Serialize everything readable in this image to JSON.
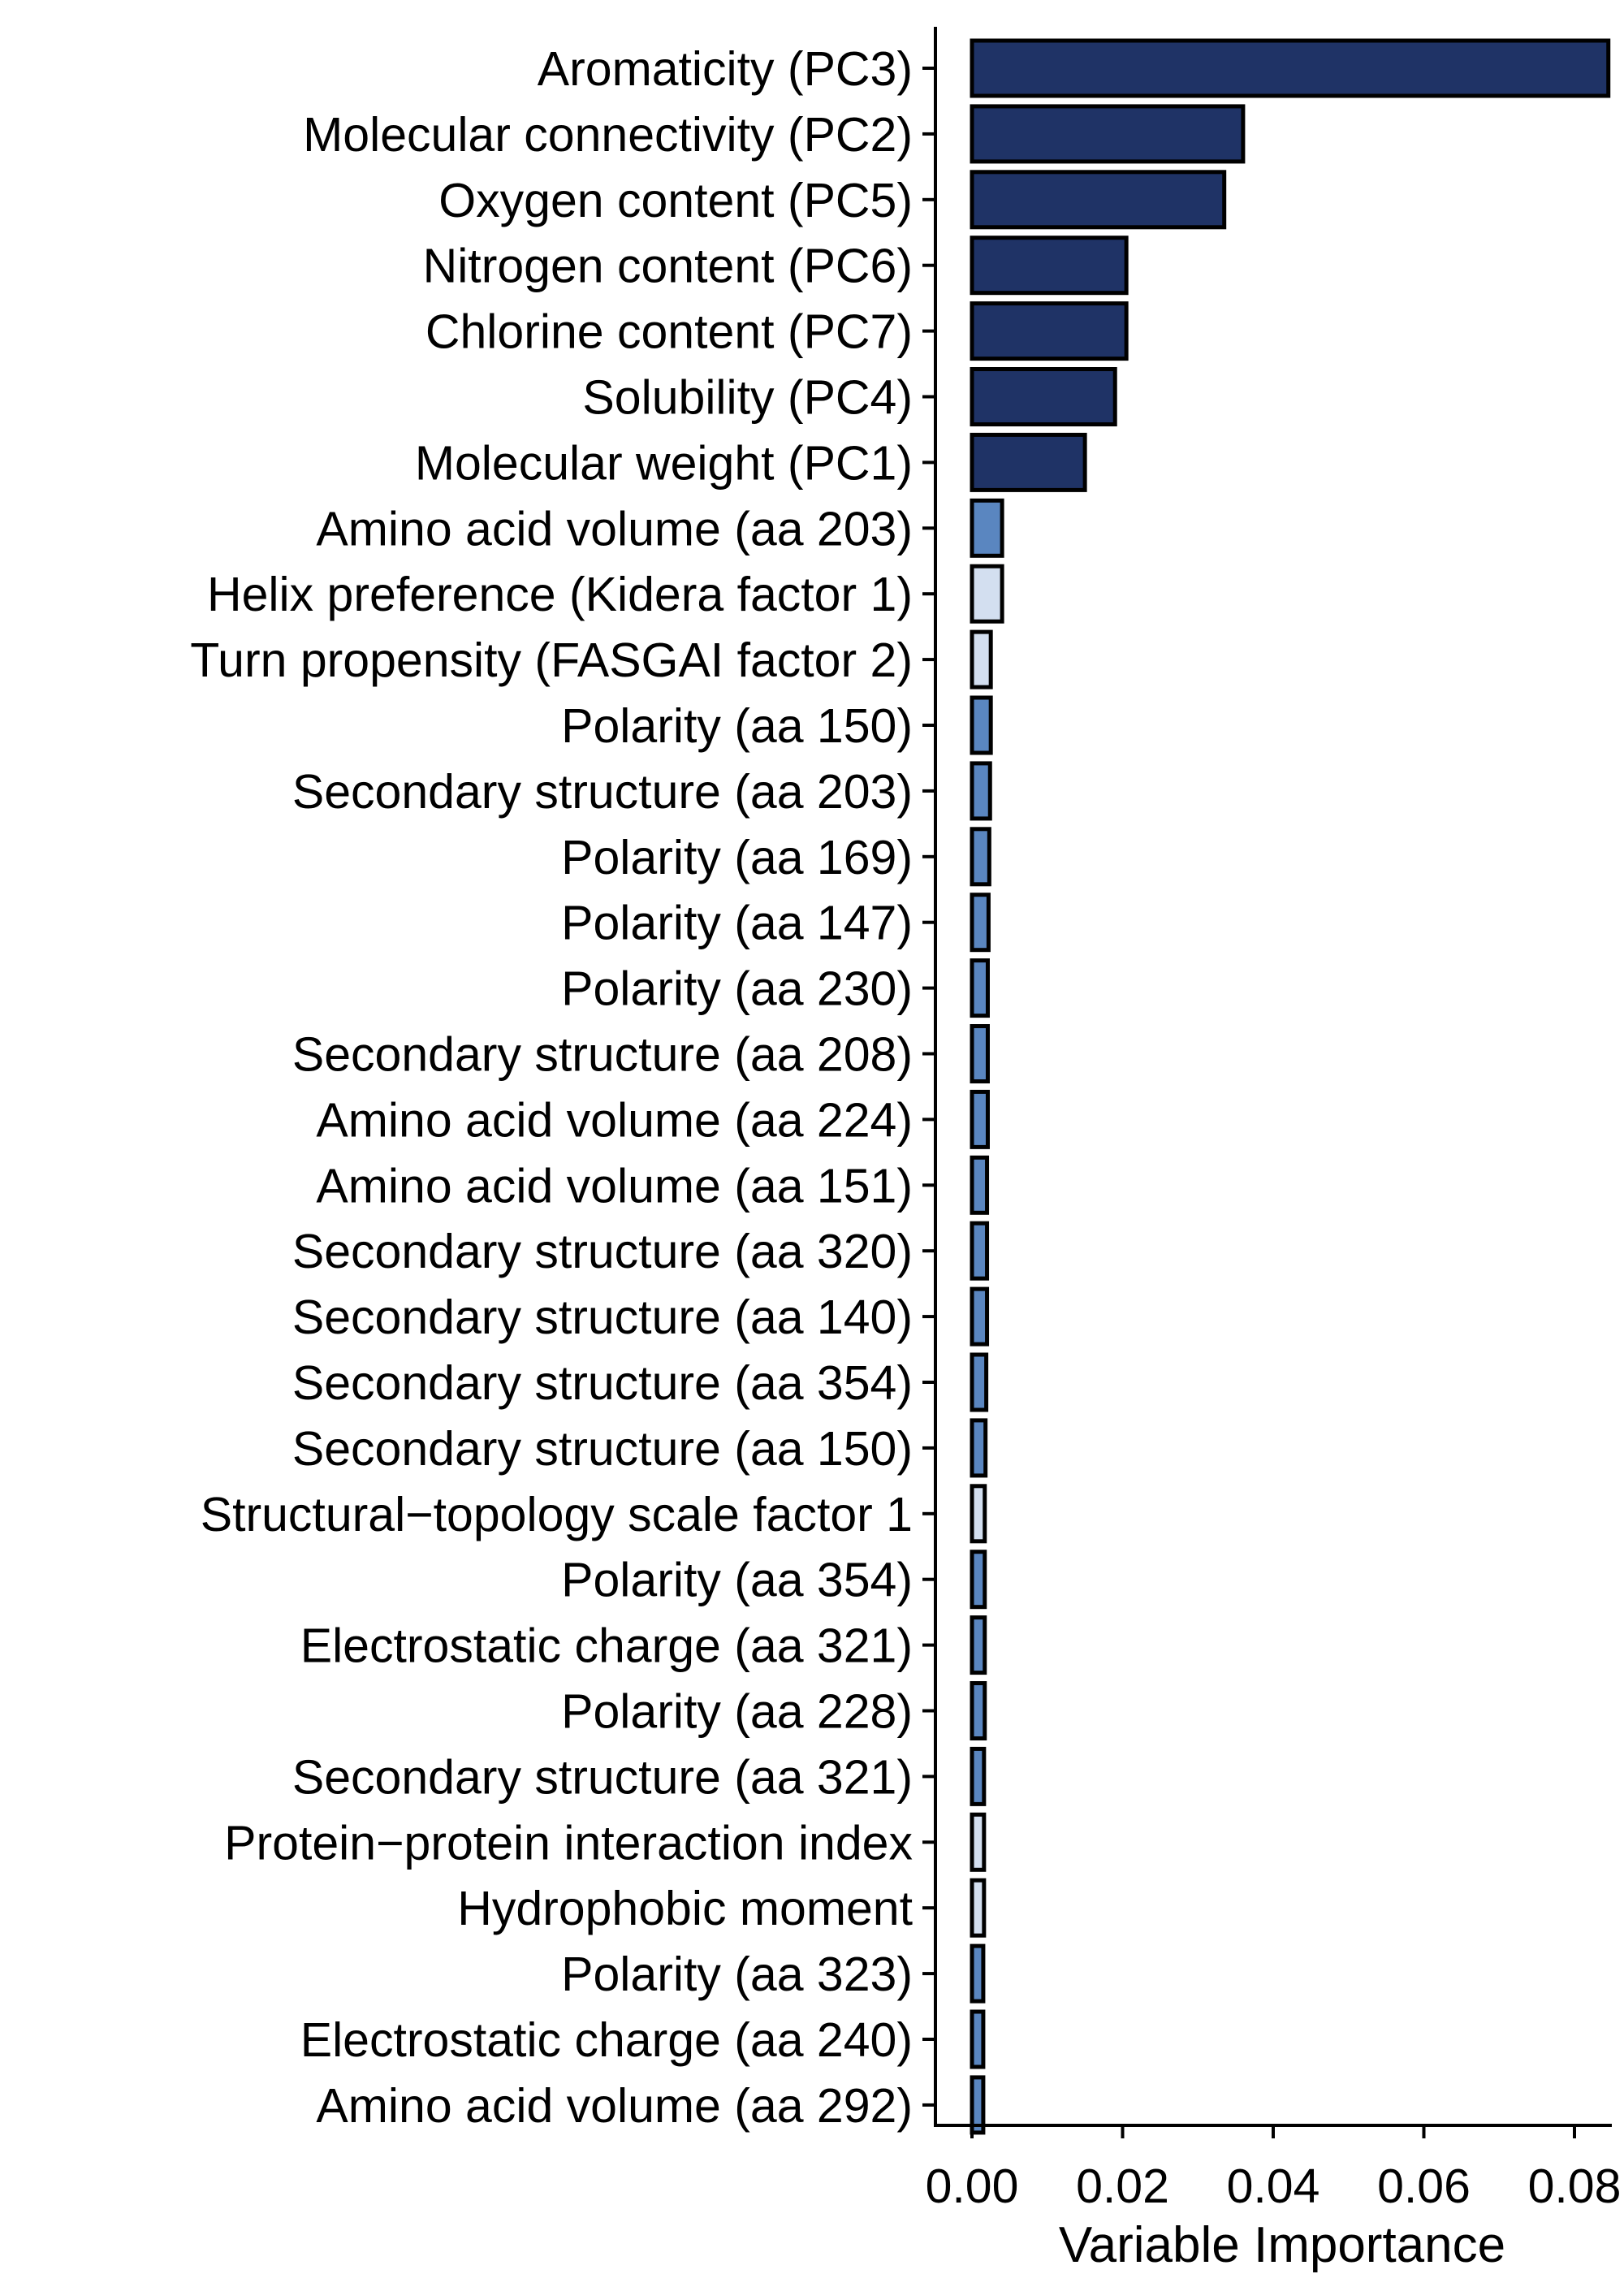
{
  "chart_data": {
    "type": "bar",
    "orientation": "horizontal",
    "title": "",
    "xlabel": "Variable Importance",
    "ylabel": "",
    "xlim": [
      0,
      0.088
    ],
    "xticks": [
      0,
      0.02,
      0.04,
      0.06,
      0.08
    ],
    "xtick_labels": [
      "0.00",
      "0.02",
      "0.04",
      "0.06",
      "0.08"
    ],
    "grid": false,
    "legend": "none",
    "colors": {
      "dark": "#1f3366",
      "medium": "#5a86c0",
      "light": "#d3dff0"
    },
    "categories": [
      "Aromaticity (PC3)",
      "Molecular connectivity (PC2)",
      "Oxygen content (PC5)",
      "Nitrogen content (PC6)",
      "Chlorine content (PC7)",
      "Solubility (PC4)",
      "Molecular weight (PC1)",
      "Amino acid volume (aa 203)",
      "Helix preference (Kidera factor 1)",
      "Turn propensity (FASGAI factor 2)",
      "Polarity (aa 150)",
      "Secondary structure (aa 203)",
      "Polarity (aa 169)",
      "Polarity (aa 147)",
      "Polarity (aa 230)",
      "Secondary structure (aa 208)",
      "Amino acid volume (aa 224)",
      "Amino acid volume (aa 151)",
      "Secondary structure (aa 320)",
      "Secondary structure (aa 140)",
      "Secondary structure (aa 354)",
      "Secondary structure (aa 150)",
      "Structural−topology scale factor 1",
      "Polarity (aa 354)",
      "Electrostatic charge (aa 321)",
      "Polarity (aa 228)",
      "Secondary structure (aa 321)",
      "Protein−protein interaction index",
      "Hydrophobic moment",
      "Polarity (aa 323)",
      "Electrostatic charge (aa 240)",
      "Amino acid volume (aa 292)"
    ],
    "values": [
      0.0845,
      0.036,
      0.0335,
      0.0205,
      0.0205,
      0.019,
      0.015,
      0.004,
      0.004,
      0.0025,
      0.0025,
      0.0024,
      0.0023,
      0.0022,
      0.0021,
      0.0021,
      0.0021,
      0.002,
      0.002,
      0.002,
      0.0019,
      0.0018,
      0.0017,
      0.0017,
      0.0017,
      0.0017,
      0.0016,
      0.0016,
      0.0016,
      0.0015,
      0.0015,
      0.0015
    ],
    "color_groups": [
      "dark",
      "dark",
      "dark",
      "dark",
      "dark",
      "dark",
      "dark",
      "medium",
      "light",
      "light",
      "medium",
      "medium",
      "medium",
      "medium",
      "medium",
      "medium",
      "medium",
      "medium",
      "medium",
      "medium",
      "medium",
      "medium",
      "light",
      "medium",
      "medium",
      "medium",
      "medium",
      "light",
      "light",
      "medium",
      "medium",
      "medium"
    ]
  }
}
